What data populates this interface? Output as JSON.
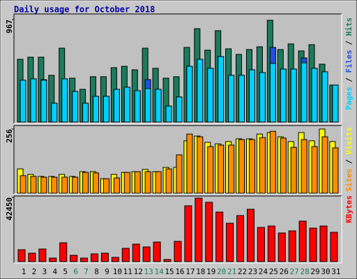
{
  "chart_data": [
    {
      "type": "bar",
      "title": "Daily usage for October 2018",
      "legend_separator": " / ",
      "ylim": [
        0,
        967
      ],
      "yticks": [
        967
      ],
      "series": [
        {
          "name": "Pages",
          "color": "#00d0ff",
          "values": [
            395,
            408,
            395,
            178,
            408,
            289,
            178,
            243,
            243,
            309,
            329,
            296,
            316,
            309,
            151,
            237,
            526,
            592,
            507,
            618,
            441,
            441,
            493,
            467,
            553,
            500,
            500,
            559,
            507,
            474,
            349
          ]
        },
        {
          "name": "Files",
          "color": "#2050e0",
          "values": [
            395,
            408,
            400,
            178,
            408,
            289,
            178,
            243,
            243,
            309,
            329,
            296,
            401,
            309,
            151,
            237,
            526,
            592,
            507,
            618,
            441,
            441,
            493,
            467,
            704,
            500,
            500,
            605,
            507,
            474,
            349
          ]
        },
        {
          "name": "Hits",
          "color": "#1c7b5c",
          "values": [
            592,
            612,
            612,
            441,
            697,
            414,
            309,
            428,
            428,
            513,
            526,
            493,
            697,
            507,
            414,
            428,
            704,
            881,
            678,
            862,
            691,
            638,
            684,
            710,
            960,
            684,
            737,
            671,
            730,
            546,
            349
          ]
        }
      ]
    },
    {
      "type": "bar",
      "legend_separator": " / ",
      "ylim": [
        0,
        256
      ],
      "yticks": [
        256
      ],
      "series": [
        {
          "name": "Sites",
          "color": "#ff8c00",
          "values": [
            70,
            67,
            64,
            64,
            64,
            64,
            83,
            81,
            58,
            61,
            83,
            86,
            86,
            86,
            97,
            153,
            236,
            225,
            186,
            192,
            192,
            214,
            214,
            222,
            247,
            220,
            183,
            214,
            186,
            225,
            181
          ]
        },
        {
          "name": "Visits",
          "color": "#ffff00",
          "values": [
            97,
            75,
            67,
            67,
            75,
            67,
            86,
            86,
            58,
            75,
            83,
            86,
            95,
            86,
            103,
            103,
            209,
            228,
            203,
            197,
            206,
            217,
            217,
            236,
            242,
            225,
            206,
            242,
            209,
            256,
            206
          ]
        }
      ]
    },
    {
      "type": "bar",
      "ylim": [
        0,
        42450
      ],
      "yticks": [
        42450
      ],
      "categories": [
        "1",
        "2",
        "3",
        "4",
        "5",
        "6",
        "7",
        "8",
        "9",
        "10",
        "11",
        "12",
        "13",
        "14",
        "15",
        "16",
        "17",
        "18",
        "19",
        "20",
        "21",
        "22",
        "23",
        "24",
        "25",
        "26",
        "27",
        "28",
        "29",
        "30",
        "31"
      ],
      "category_colors": [
        "#000000",
        "#000000",
        "#000000",
        "#000000",
        "#000000",
        "#1c7b5c",
        "#1c7b5c",
        "#000000",
        "#000000",
        "#000000",
        "#000000",
        "#000000",
        "#1c7b5c",
        "#1c7b5c",
        "#000000",
        "#000000",
        "#000000",
        "#000000",
        "#000000",
        "#1c7b5c",
        "#1c7b5c",
        "#000000",
        "#000000",
        "#000000",
        "#000000",
        "#000000",
        "#1c7b5c",
        "#1c7b5c",
        "#000000",
        "#000000",
        "#000000"
      ],
      "series": [
        {
          "name": "KBytes",
          "color": "#ff0000",
          "values": [
            7840,
            5530,
            8300,
            2300,
            12450,
            4150,
            2300,
            5070,
            5530,
            2770,
            8760,
            11530,
            9690,
            12910,
            1380,
            13370,
            36900,
            41960,
            39200,
            32740,
            25360,
            30430,
            34590,
            22590,
            23520,
            18910,
            20290,
            26750,
            22130,
            23520,
            19370
          ]
        }
      ]
    }
  ]
}
